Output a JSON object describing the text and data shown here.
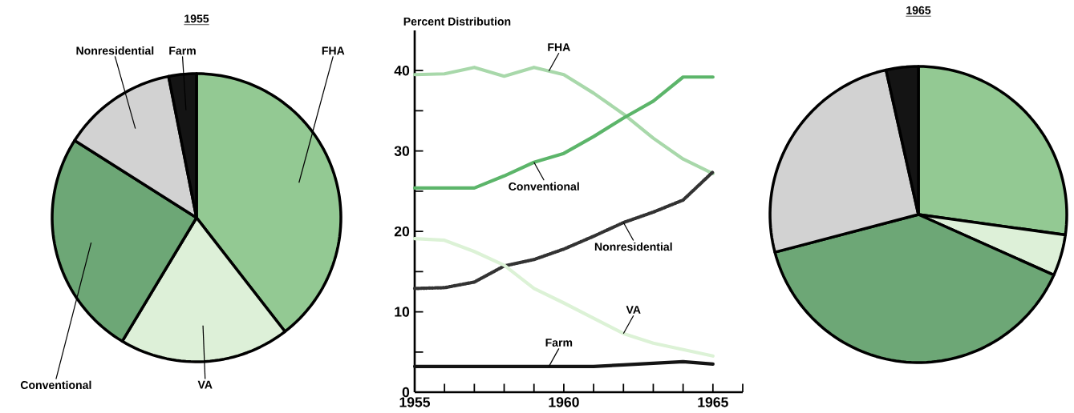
{
  "chart_data": [
    {
      "type": "pie",
      "title": "1955",
      "categories": [
        "FHA",
        "VA",
        "Conventional",
        "Nonresidential",
        "Farm"
      ],
      "values": [
        39.5,
        19.1,
        25.4,
        12.9,
        3.1
      ],
      "colors": [
        "#93c993",
        "#ddf0d8",
        "#6da776",
        "#d2d2d2",
        "#141414"
      ]
    },
    {
      "type": "line",
      "ylabel": "Percent Distribution",
      "x": [
        1955,
        1956,
        1957,
        1958,
        1959,
        1960,
        1961,
        1962,
        1963,
        1964,
        1965
      ],
      "xlim": [
        1955,
        1966
      ],
      "ylim": [
        0,
        45
      ],
      "xticks": [
        1955,
        {
          "value": 1956,
          "label": null
        },
        {
          "value": 1957,
          "label": null
        },
        {
          "value": 1958,
          "label": null
        },
        {
          "value": 1959,
          "label": null
        },
        1960,
        {
          "value": 1961,
          "label": null
        },
        {
          "value": 1962,
          "label": null
        },
        {
          "value": 1963,
          "label": null
        },
        {
          "value": 1964,
          "label": null
        },
        1965,
        {
          "value": 1966,
          "label": null
        }
      ],
      "yticks": [
        0,
        {
          "value": 5,
          "label": null
        },
        10,
        {
          "value": 15,
          "label": null
        },
        20,
        {
          "value": 25,
          "label": null
        },
        30,
        {
          "value": 35,
          "label": null
        },
        40
      ],
      "legend": false,
      "marker": "none",
      "series": [
        {
          "name": "FHA",
          "color": "#a8d8aa",
          "values": [
            39.5,
            39.6,
            40.4,
            39.3,
            40.4,
            39.5,
            37.2,
            34.6,
            31.6,
            29.0,
            27.2
          ]
        },
        {
          "name": "Conventional",
          "color": "#5cb56a",
          "values": [
            25.4,
            25.4,
            25.4,
            26.9,
            28.6,
            29.7,
            31.8,
            34.1,
            36.2,
            39.2,
            39.2
          ]
        },
        {
          "name": "Nonresidential",
          "color": "#333333",
          "line_style": "dotted",
          "values": [
            12.9,
            13.0,
            13.7,
            15.7,
            16.5,
            17.8,
            19.4,
            21.1,
            22.4,
            23.9,
            27.4
          ]
        },
        {
          "name": "VA",
          "color": "#dcf2d6",
          "values": [
            19.1,
            18.9,
            17.5,
            15.8,
            12.9,
            11.1,
            9.2,
            7.3,
            6.1,
            5.3,
            4.5
          ]
        },
        {
          "name": "Farm",
          "color": "#141414",
          "values": [
            3.2,
            3.2,
            3.2,
            3.2,
            3.2,
            3.2,
            3.2,
            3.4,
            3.6,
            3.8,
            3.5
          ]
        }
      ]
    },
    {
      "type": "pie",
      "title": "1965",
      "categories": [
        null,
        null,
        null,
        null,
        null
      ],
      "values": [
        27.2,
        4.5,
        39.2,
        25.6,
        3.5
      ],
      "colors": [
        "#93c993",
        "#ddf0d8",
        "#6da776",
        "#d2d2d2",
        "#141414"
      ]
    }
  ]
}
